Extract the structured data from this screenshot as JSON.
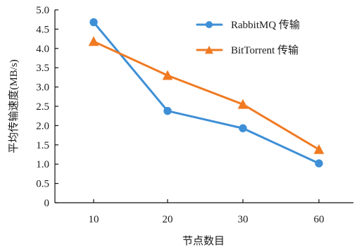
{
  "chart_data": {
    "type": "line",
    "title": "",
    "xlabel": "节点数目",
    "ylabel": "平均传输速度(MB/s)",
    "categories": [
      "10",
      "20",
      "30",
      "60"
    ],
    "ylim": [
      0,
      5.0
    ],
    "yticks": [
      "0",
      "0.5",
      "1.0",
      "1.5",
      "2.0",
      "2.5",
      "3.0",
      "3.5",
      "4.0",
      "4.5",
      "5.0"
    ],
    "grid": false,
    "legend_position": "top-right",
    "series": [
      {
        "name": "RabbitMQ 传输",
        "values": [
          4.68,
          2.38,
          1.93,
          1.02
        ],
        "color": "#3E8FD6",
        "marker": "circle"
      },
      {
        "name": "BitTorrent 传输",
        "values": [
          4.18,
          3.3,
          2.55,
          1.38
        ],
        "color": "#F07A22",
        "marker": "triangle"
      }
    ]
  }
}
